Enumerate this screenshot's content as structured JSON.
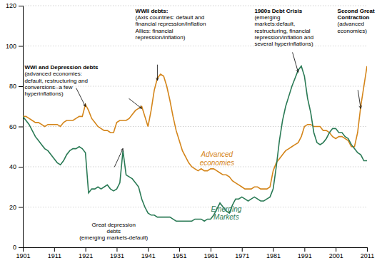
{
  "chart_data": {
    "type": "line",
    "x": [
      1901,
      1902,
      1903,
      1904,
      1905,
      1906,
      1907,
      1908,
      1909,
      1910,
      1911,
      1912,
      1913,
      1914,
      1915,
      1916,
      1917,
      1918,
      1919,
      1920,
      1921,
      1922,
      1923,
      1924,
      1925,
      1926,
      1927,
      1928,
      1929,
      1930,
      1931,
      1932,
      1933,
      1934,
      1935,
      1936,
      1937,
      1938,
      1939,
      1940,
      1941,
      1942,
      1943,
      1944,
      1945,
      1946,
      1947,
      1948,
      1949,
      1950,
      1951,
      1952,
      1953,
      1954,
      1955,
      1956,
      1957,
      1958,
      1959,
      1960,
      1961,
      1962,
      1963,
      1964,
      1965,
      1966,
      1967,
      1968,
      1969,
      1970,
      1971,
      1972,
      1973,
      1974,
      1975,
      1976,
      1977,
      1978,
      1979,
      1980,
      1981,
      1982,
      1983,
      1984,
      1985,
      1986,
      1987,
      1988,
      1989,
      1990,
      1991,
      1992,
      1993,
      1994,
      1995,
      1996,
      1997,
      1998,
      1999,
      2000,
      2001,
      2002,
      2003,
      2004,
      2005,
      2006,
      2007,
      2008,
      2009,
      2010,
      2011
    ],
    "series": [
      {
        "name": "Advanced\neconomies",
        "color": "#D4851A",
        "values": [
          65,
          65,
          64,
          63,
          62,
          62,
          61,
          60,
          61,
          61,
          61,
          61,
          60,
          62,
          63,
          63,
          63,
          64,
          65,
          65,
          71,
          68,
          64,
          62,
          60,
          59,
          58,
          58,
          57,
          57,
          62,
          63,
          63,
          63,
          64,
          66,
          68,
          69,
          70,
          65,
          60,
          68,
          78,
          84,
          86,
          85,
          80,
          73,
          65,
          58,
          53,
          48,
          45,
          42,
          40,
          39,
          38,
          39,
          38,
          38,
          39,
          39,
          38,
          37,
          36,
          36,
          35,
          33,
          32,
          31,
          30,
          29,
          29,
          29,
          30,
          30,
          29,
          29,
          29,
          30,
          38,
          42,
          44,
          46,
          48,
          49,
          50,
          51,
          52,
          55,
          60,
          61,
          61,
          60,
          60,
          60,
          58,
          58,
          57,
          55,
          54,
          55,
          55,
          54,
          53,
          50,
          50,
          57,
          70,
          80,
          90
        ]
      },
      {
        "name": "Emerging\nMarkets",
        "color": "#2A7A55",
        "values": [
          65,
          63,
          61,
          58,
          55,
          53,
          51,
          49,
          48,
          46,
          44,
          42,
          41,
          43,
          46,
          48,
          49,
          49,
          50,
          49,
          47,
          27,
          29,
          29,
          30,
          29,
          30,
          31,
          29,
          28,
          29,
          32,
          48,
          36,
          35,
          34,
          32,
          30,
          24,
          20,
          17,
          16,
          16,
          15,
          15,
          15,
          15,
          15,
          14,
          13,
          13,
          13,
          13,
          13,
          13,
          14,
          14,
          14,
          13,
          14,
          14,
          16,
          19,
          22,
          20,
          18,
          17,
          21,
          24,
          24,
          25,
          24,
          23,
          24,
          25,
          24,
          23,
          23,
          24,
          25,
          29,
          40,
          53,
          63,
          70,
          75,
          80,
          84,
          88,
          90,
          85,
          74,
          67,
          57,
          52,
          51,
          52,
          54,
          57,
          59,
          59,
          57,
          57,
          55,
          54,
          51,
          49,
          47,
          46,
          43,
          43
        ]
      }
    ],
    "xlim": [
      1901,
      2011
    ],
    "ylim": [
      0,
      120
    ],
    "xticks": [
      1901,
      1911,
      1921,
      1931,
      1941,
      1951,
      1961,
      1971,
      1981,
      1991,
      2001,
      2011
    ],
    "yticks": [
      0,
      20,
      40,
      60,
      80,
      100,
      120
    ],
    "grid": true,
    "annotations": [
      {
        "text": "WWI and Depression debts\n(advanced economies:\ndefault, restructuring and\nconversions--a few\nhyperinflations)"
      },
      {
        "text": "Great depression\ndebts\n(emerging markets-default)"
      },
      {
        "text": "WWII debts:\n(Axis countries: default and\nfinancial repression/inflation\nAllies: financial\nrepression/inflation)"
      },
      {
        "text": "1980s Debt Crisis\n(emerging\nmarkets:default,\nrestructuring, financial\nrepression/inflation and\nseveral hyperinflations)"
      },
      {
        "text": "Second Great\nContraction\n(advanced\neconomies)"
      }
    ]
  }
}
